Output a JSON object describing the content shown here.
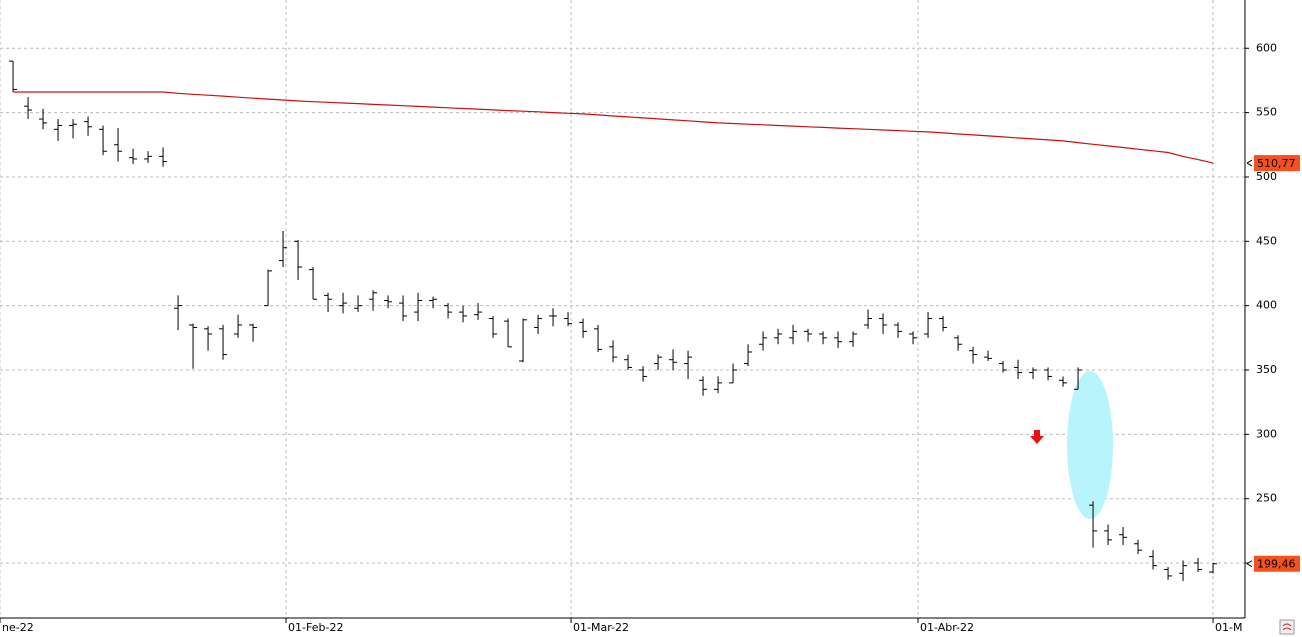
{
  "chart_data": {
    "type": "ohlc",
    "ylim": [
      157.3,
      637.5
    ],
    "yticks": [
      200,
      250,
      300,
      350,
      400,
      450,
      500,
      550,
      600
    ],
    "xlim": [
      -0.87,
      82.13
    ],
    "xticks": [
      {
        "value": -0.87,
        "label": "ne-22"
      },
      {
        "value": 18.2,
        "label": "01-Feb-22"
      },
      {
        "value": 37.2,
        "label": "01-Mar-22"
      },
      {
        "value": 60.33,
        "label": "01-Abr-22"
      },
      {
        "value": 80,
        "label": "01-M"
      }
    ],
    "grid": true,
    "ohlc": {
      "color": "#000000",
      "open": [
        590,
        555,
        545,
        537,
        540,
        543,
        537,
        525,
        515,
        514,
        516,
        398,
        385,
        382,
        382,
        378,
        385,
        400,
        435,
        450,
        428,
        408,
        400,
        398,
        405,
        404,
        402,
        395,
        404,
        400,
        395,
        393,
        390,
        388,
        357,
        383,
        392,
        390,
        387,
        382,
        368,
        358,
        350,
        355,
        358,
        355,
        342,
        335,
        340,
        355,
        370,
        375,
        375,
        380,
        378,
        375,
        372,
        385,
        390,
        385,
        378,
        378,
        390,
        375,
        365,
        360,
        355,
        352,
        348,
        350,
        342,
        335,
        245,
        225,
        222,
        215,
        205,
        195,
        192,
        200,
        193
      ],
      "high": [
        590,
        562,
        553,
        545,
        545,
        547,
        540,
        538,
        522,
        520,
        523,
        408,
        386,
        384,
        385,
        393,
        386,
        428,
        458,
        451,
        430,
        410,
        410,
        408,
        412,
        408,
        408,
        410,
        407,
        402,
        400,
        402,
        392,
        390,
        390,
        393,
        398,
        395,
        390,
        385,
        373,
        362,
        353,
        362,
        366,
        365,
        345,
        345,
        355,
        370,
        380,
        382,
        385,
        382,
        380,
        380,
        380,
        397,
        394,
        387,
        380,
        395,
        392,
        377,
        368,
        365,
        357,
        358,
        352,
        352,
        345,
        352,
        248,
        230,
        228,
        218,
        210,
        197,
        202,
        204,
        200
      ],
      "low": [
        566,
        545,
        537,
        528,
        530,
        532,
        517,
        512,
        510,
        511,
        508,
        381,
        351,
        365,
        358,
        375,
        372,
        400,
        430,
        420,
        405,
        395,
        394,
        395,
        396,
        398,
        388,
        388,
        398,
        390,
        387,
        389,
        375,
        368,
        356,
        378,
        384,
        384,
        375,
        364,
        356,
        350,
        341,
        350,
        350,
        343,
        330,
        332,
        340,
        353,
        365,
        370,
        370,
        372,
        370,
        367,
        368,
        382,
        378,
        375,
        370,
        375,
        380,
        365,
        355,
        357,
        348,
        343,
        343,
        342,
        337,
        335,
        212,
        214,
        214,
        207,
        195,
        187,
        186,
        193,
        192
      ],
      "close": [
        568,
        552,
        542,
        540,
        541,
        539,
        520,
        520,
        514,
        516,
        512,
        400,
        383,
        378,
        362,
        385,
        383,
        427,
        445,
        430,
        405,
        405,
        402,
        400,
        410,
        403,
        392,
        404,
        405,
        395,
        392,
        395,
        378,
        368,
        389,
        390,
        392,
        386,
        380,
        366,
        360,
        352,
        345,
        360,
        356,
        360,
        335,
        340,
        350,
        364,
        375,
        378,
        380,
        378,
        375,
        372,
        378,
        390,
        385,
        380,
        375,
        390,
        383,
        370,
        362,
        359,
        350,
        348,
        350,
        345,
        340,
        350,
        225,
        218,
        220,
        210,
        198,
        190,
        198,
        195,
        199.46
      ],
      "last_label": "199,46"
    },
    "moving_average": {
      "color": "#cc1010",
      "values": [
        566,
        566,
        566,
        566,
        566,
        566,
        566,
        566,
        566,
        566,
        566,
        565,
        564.2,
        563.5,
        562.8,
        562,
        561.2,
        560.5,
        559.8,
        559,
        558.5,
        558,
        557.5,
        557,
        556.4,
        555.9,
        555.4,
        554.8,
        554.3,
        553.7,
        553.2,
        552.7,
        552.1,
        551.6,
        551.1,
        550.6,
        550,
        549.5,
        549,
        548.2,
        547.4,
        546.7,
        545.9,
        545.1,
        544.3,
        543.6,
        542.8,
        542,
        541.5,
        541,
        540.5,
        540,
        539.5,
        539,
        538.5,
        538,
        537.5,
        537,
        536.5,
        536,
        535.5,
        535,
        534.2,
        533.4,
        532.7,
        531.9,
        531.1,
        530.3,
        529.6,
        528.8,
        528,
        526.7,
        525.4,
        524.1,
        522.9,
        521.6,
        520.3,
        519,
        516,
        513.5,
        510.77
      ],
      "last_label": "510,77"
    }
  }
}
